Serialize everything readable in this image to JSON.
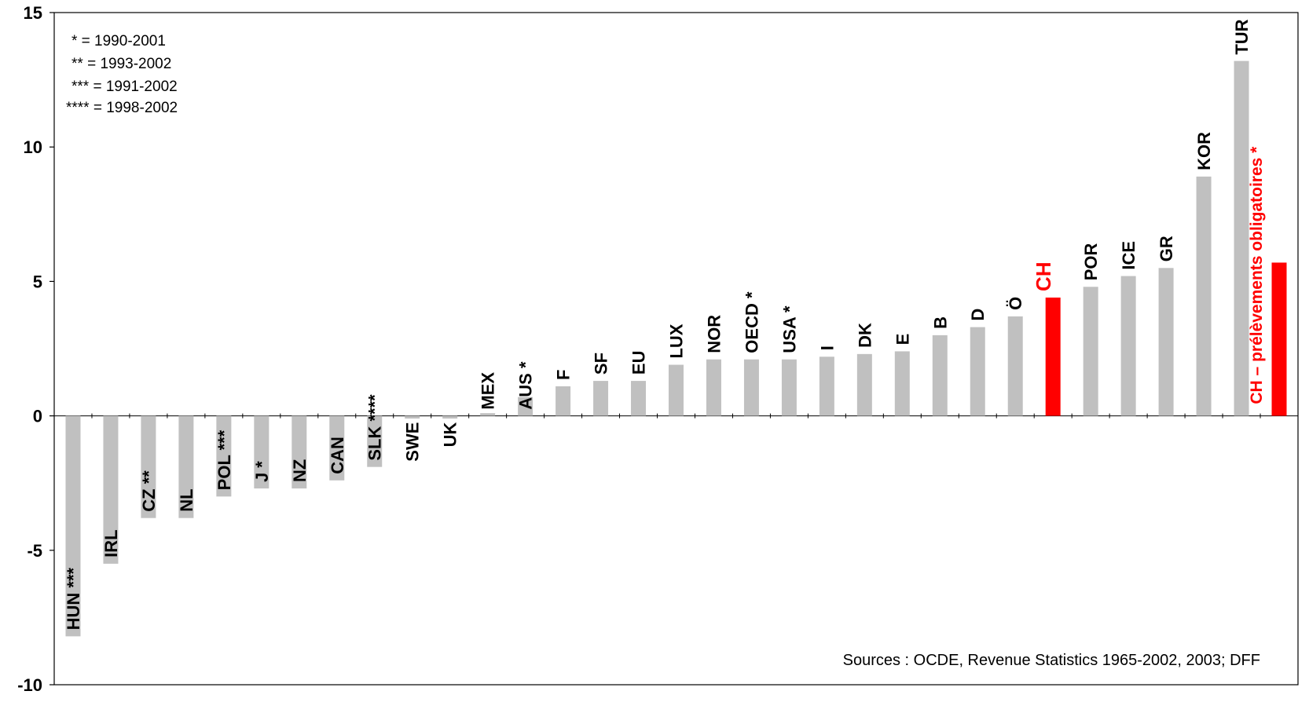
{
  "chart_data": {
    "type": "bar",
    "ylim": [
      -10,
      15
    ],
    "y_ticks": [
      "15",
      "10",
      "5",
      "0",
      "-5",
      "-10"
    ],
    "y_tick_values": [
      15,
      10,
      5,
      0,
      -5,
      -10
    ],
    "categories": [
      "HUN ***",
      "IRL",
      "CZ **",
      "NL",
      "POL ***",
      "J *",
      "NZ",
      "CAN",
      "SLK ****",
      "SWE",
      "UK",
      "MEX",
      "AUS *",
      "F",
      "SF",
      "EU",
      "LUX",
      "NOR",
      "OECD *",
      "USA *",
      "I",
      "DK",
      "E",
      "B",
      "D",
      "Ö",
      "CH",
      "POR",
      "ICE",
      "GR",
      "KOR",
      "TUR",
      "CH – prélèvements obligatoires *"
    ],
    "values": [
      -8.2,
      -5.5,
      -3.8,
      -3.8,
      -3.0,
      -2.7,
      -2.7,
      -2.4,
      -1.9,
      -0.1,
      -0.1,
      0.1,
      0.7,
      1.1,
      1.3,
      1.3,
      1.9,
      2.1,
      2.1,
      2.1,
      2.2,
      2.3,
      2.4,
      3.0,
      3.3,
      3.7,
      4.4,
      4.8,
      5.2,
      5.5,
      8.9,
      13.2,
      5.7
    ],
    "highlighted": [
      "CH",
      "CH – prélèvements obligatoires *"
    ],
    "bar_color": "#c0c0c0",
    "highlight_color": "#ff0000",
    "grid": false,
    "notes": [
      "* = 1990-2001",
      "** = 1993-2002",
      "*** = 1991-2002",
      "**** = 1998-2002"
    ],
    "source": "Sources : OCDE, Revenue Statistics 1965-2002, 2003; DFF"
  }
}
